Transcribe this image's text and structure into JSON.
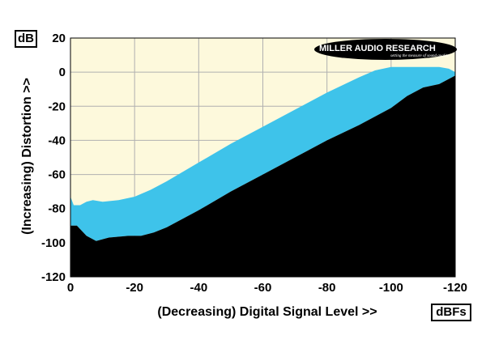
{
  "chart_data": {
    "type": "area",
    "title": "",
    "xlabel": "(Decreasing) Digital Signal Level >>",
    "ylabel": "(Increasing) Distortion >>",
    "x_unit": "dBFs",
    "y_unit": "dB",
    "xlim": [
      0,
      -120
    ],
    "ylim": [
      -120,
      20
    ],
    "x_ticks": [
      0,
      -20,
      -40,
      -60,
      -80,
      -100,
      -120
    ],
    "y_ticks": [
      20,
      0,
      -20,
      -40,
      -60,
      -80,
      -100,
      -120
    ],
    "grid": true,
    "series": [
      {
        "role": "upper",
        "x": [
          0,
          -1,
          -3,
          -5,
          -7,
          -10,
          -15,
          -20,
          -25,
          -30,
          -40,
          -50,
          -60,
          -70,
          -80,
          -90,
          -95,
          -100,
          -105,
          -110,
          -115,
          -118,
          -120
        ],
        "y": [
          -73,
          -78,
          -78,
          -76,
          -75,
          -76,
          -75,
          -73,
          -69,
          -64,
          -53,
          -42,
          -32,
          -22,
          -12,
          -3,
          1,
          3,
          3,
          3,
          3,
          2,
          0
        ]
      },
      {
        "role": "lower",
        "x": [
          0,
          -2,
          -5,
          -8,
          -12,
          -18,
          -22,
          -26,
          -30,
          -40,
          -50,
          -60,
          -70,
          -80,
          -90,
          -100,
          -105,
          -110,
          -115,
          -120
        ],
        "y": [
          -90,
          -90,
          -96,
          -99,
          -97,
          -96,
          -96,
          -94,
          -91,
          -81,
          -70,
          -60,
          -50,
          -40,
          -31,
          -21,
          -14,
          -9,
          -7,
          -2
        ]
      }
    ]
  },
  "logo": {
    "name": "MILLER AUDIO RESEARCH",
    "tagline": "setting the measure of sound quality"
  },
  "colors": {
    "plot_background": "#fdf9dc",
    "band_fill": "#3ec3ea",
    "floor_fill": "#000000",
    "grid": "#b0b0b0"
  }
}
